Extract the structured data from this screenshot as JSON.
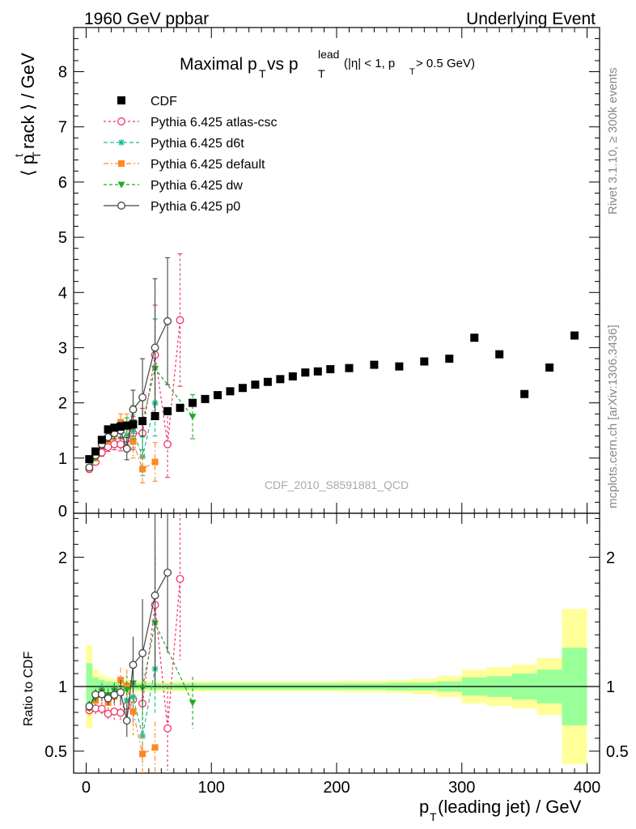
{
  "header": {
    "left": "1960 GeV ppbar",
    "right": "Underlying Event"
  },
  "side_labels": {
    "rivet": "Rivet 3.1.10, ≥ 300k events",
    "mcplots": "mcplots.cern.ch [arXiv:1306.3436]"
  },
  "chart_data": {
    "type": "scatter",
    "title": {
      "main": "Maximal p",
      "sub_t": "T",
      "vs": " vs p",
      "sub_t2": "T",
      "sup": "lead",
      "cut": "(|η| < 1, p",
      "sub_t3": "T",
      "cut2": " > 0.5 GeV)"
    },
    "ylabel_parts": [
      "⟨ p",
      "t",
      "T",
      "rack ⟩ / GeV"
    ],
    "ratio_ylabel": "Ratio to CDF",
    "xlabel_parts": [
      "p",
      "T",
      "(leading jet) / GeV"
    ],
    "watermark": "CDF_2010_S8591881_QCD",
    "xlim": [
      -10,
      410
    ],
    "ylim": [
      0,
      8.8
    ],
    "ratio_ylim": [
      0.33,
      2.34
    ],
    "x_ticks": [
      "0",
      "100",
      "200",
      "300",
      "400"
    ],
    "y_ticks": [
      "1",
      "2",
      "3",
      "4",
      "5",
      "6",
      "7",
      "8"
    ],
    "y_zero_label": "0",
    "ratio_ticks": [
      "0.5",
      "1",
      "2"
    ],
    "cdf": {
      "name": "CDF",
      "color": "#000000",
      "x": [
        2.5,
        7.5,
        12.5,
        17.5,
        22.5,
        27.5,
        32.5,
        37.5,
        45,
        55,
        65,
        75,
        85,
        95,
        105,
        115,
        125,
        135,
        145,
        155,
        165,
        175,
        185,
        195,
        210,
        230,
        250,
        270,
        290,
        310,
        330,
        350,
        370,
        390
      ],
      "y": [
        0.98,
        1.12,
        1.33,
        1.52,
        1.55,
        1.57,
        1.59,
        1.61,
        1.67,
        1.76,
        1.85,
        1.91,
        2.0,
        2.07,
        2.14,
        2.21,
        2.27,
        2.33,
        2.38,
        2.43,
        2.48,
        2.55,
        2.57,
        2.61,
        2.63,
        2.69,
        2.66,
        2.75,
        2.8,
        3.18,
        2.88,
        2.16,
        2.64,
        3.22
      ],
      "band_inner": [
        0.18,
        0.07,
        0.05,
        0.04,
        0.035,
        0.03,
        0.03,
        0.025,
        0.025,
        0.025,
        0.025,
        0.025,
        0.025,
        0.025,
        0.025,
        0.025,
        0.025,
        0.025,
        0.025,
        0.025,
        0.025,
        0.025,
        0.025,
        0.025,
        0.025,
        0.025,
        0.03,
        0.03,
        0.04,
        0.07,
        0.08,
        0.1,
        0.13,
        0.3
      ],
      "band_outer": [
        0.32,
        0.13,
        0.09,
        0.07,
        0.06,
        0.05,
        0.05,
        0.045,
        0.04,
        0.04,
        0.04,
        0.04,
        0.04,
        0.04,
        0.04,
        0.04,
        0.04,
        0.04,
        0.04,
        0.04,
        0.04,
        0.04,
        0.04,
        0.04,
        0.045,
        0.045,
        0.05,
        0.06,
        0.08,
        0.13,
        0.15,
        0.17,
        0.22,
        0.6
      ]
    },
    "series": [
      {
        "name": "Pythia 6.425 atlas-csc",
        "color": "#ee3366",
        "marker": "circle-open",
        "dash": "3,3",
        "x": [
          2.5,
          7.5,
          12.5,
          17.5,
          22.5,
          27.5,
          32.5,
          37.5,
          45,
          55,
          65,
          75
        ],
        "y": [
          0.8,
          0.93,
          1.1,
          1.2,
          1.25,
          1.25,
          1.35,
          1.45,
          1.45,
          2.87,
          1.25,
          3.5
        ],
        "err": [
          0.04,
          0.05,
          0.07,
          0.08,
          0.1,
          0.12,
          0.18,
          0.3,
          0.45,
          0.9,
          0.6,
          1.2
        ]
      },
      {
        "name": "Pythia 6.425 d6t",
        "color": "#22bb99",
        "marker": "star",
        "dash": "5,3",
        "x": [
          2.5,
          7.5,
          12.5,
          17.5,
          22.5,
          27.5,
          32.5,
          37.5,
          45,
          55
        ],
        "y": [
          0.83,
          1.0,
          1.3,
          1.4,
          1.48,
          1.5,
          1.42,
          1.48,
          1.03,
          2.0
        ],
        "err": [
          0.04,
          0.05,
          0.07,
          0.08,
          0.1,
          0.12,
          0.18,
          0.3,
          0.35,
          0.6
        ]
      },
      {
        "name": "Pythia 6.425 default",
        "color": "#ff8822",
        "marker": "square",
        "dash": "6,3,2,3",
        "x": [
          2.5,
          7.5,
          12.5,
          17.5,
          22.5,
          27.5,
          32.5,
          37.5,
          45,
          55
        ],
        "y": [
          0.82,
          1.0,
          1.25,
          1.33,
          1.43,
          1.65,
          1.6,
          1.3,
          0.8,
          0.93
        ],
        "err": [
          0.04,
          0.05,
          0.07,
          0.08,
          0.1,
          0.15,
          0.2,
          0.3,
          0.25,
          0.35
        ]
      },
      {
        "name": "Pythia 6.425 dw",
        "color": "#22aa22",
        "marker": "triangle-down",
        "dash": "4,3",
        "x": [
          2.5,
          7.5,
          12.5,
          17.5,
          22.5,
          27.5,
          32.5,
          37.5,
          45,
          55,
          85
        ],
        "y": [
          0.83,
          1.02,
          1.28,
          1.42,
          1.5,
          1.5,
          1.55,
          1.65,
          1.65,
          2.62,
          1.75
        ],
        "err": [
          0.04,
          0.05,
          0.07,
          0.08,
          0.1,
          0.12,
          0.18,
          0.3,
          0.5,
          0.9,
          0.4
        ]
      },
      {
        "name": "Pythia 6.425 p0",
        "color": "#444444",
        "marker": "circle-open",
        "dash": "",
        "x": [
          2.5,
          7.5,
          12.5,
          17.5,
          22.5,
          27.5,
          32.5,
          37.5,
          45,
          55,
          65
        ],
        "y": [
          0.83,
          1.05,
          1.25,
          1.38,
          1.45,
          1.5,
          1.17,
          1.88,
          2.1,
          3.0,
          3.48
        ],
        "err": [
          0.04,
          0.05,
          0.07,
          0.08,
          0.1,
          0.15,
          0.2,
          0.35,
          0.7,
          1.25,
          1.15
        ]
      }
    ]
  }
}
